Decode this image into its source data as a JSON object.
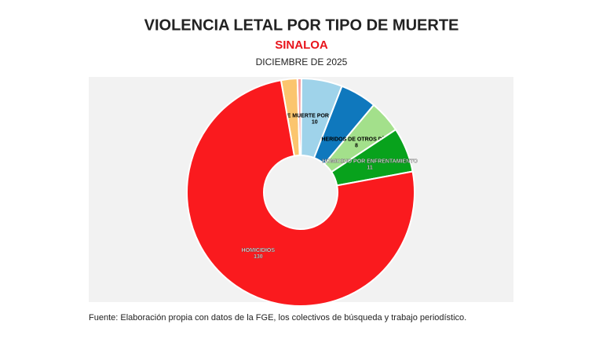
{
  "chart_data": {
    "type": "donut",
    "title": "VIOLENCIA LETAL POR TIPO DE MUERTE",
    "subtitle": "SINALOA",
    "date": "DICIEMBRE DE 2025",
    "source": "Fuente: Elaboración propia con datos de la FGE, los colectivos de búsqueda y trabajo periodístico.",
    "categories": [
      null,
      null,
      "CAUSA DE MUERTE POR DETERMINAR",
      null,
      "HERIDOS DE OTROS DÍAS",
      "HOMICIDIO POR ENFRENTAMIENTO",
      "HOMICIDIOS"
    ],
    "values": [
      4,
      1,
      10,
      9,
      8,
      11,
      130
    ],
    "colors": [
      "#fbc56e",
      "#f7a1a5",
      "#9fd3ea",
      "#0f78bd",
      "#a3e08b",
      "#08a21c",
      "#fa1a1e"
    ]
  }
}
